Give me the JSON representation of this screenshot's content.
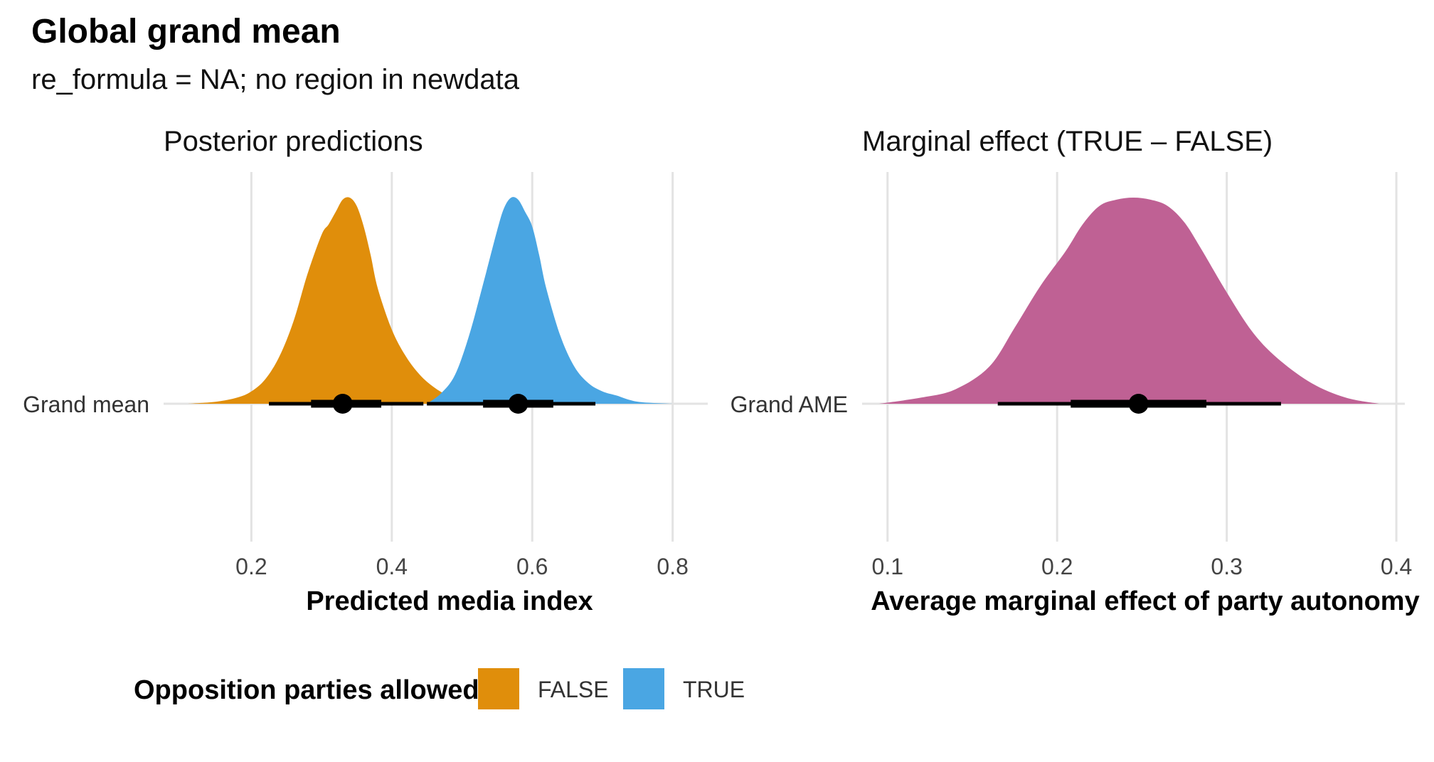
{
  "title": "Global grand mean",
  "subtitle": "re_formula = NA; no region in newdata",
  "colors": {
    "false": "#E08E0B",
    "true": "#4AA6E3",
    "ame": "#BF6194",
    "interval": "#000000",
    "grid": "#E3E3E3"
  },
  "chart_data": [
    {
      "type": "area",
      "subtype": "halfeye-density",
      "title": "Posterior predictions",
      "xlabel": "Predicted media index",
      "ylabel": "",
      "row_label": "Grand mean",
      "xlim": [
        0.075,
        0.85
      ],
      "xticks": [
        0.2,
        0.4,
        0.6,
        0.8
      ],
      "xtick_labels": [
        "0.2",
        "0.4",
        "0.6",
        "0.8"
      ],
      "grid": true,
      "series": [
        {
          "name": "FALSE",
          "color": "#E08E0B",
          "density": {
            "x": [
              0.11,
              0.15,
              0.18,
              0.2,
              0.22,
              0.24,
              0.26,
              0.28,
              0.3,
              0.31,
              0.32,
              0.33,
              0.34,
              0.35,
              0.36,
              0.37,
              0.38,
              0.4,
              0.42,
              0.44,
              0.46,
              0.48,
              0.5,
              0.52,
              0.55
            ],
            "y": [
              0.0,
              0.01,
              0.03,
              0.06,
              0.12,
              0.23,
              0.4,
              0.63,
              0.82,
              0.87,
              0.93,
              0.99,
              1.0,
              0.96,
              0.86,
              0.72,
              0.56,
              0.36,
              0.23,
              0.14,
              0.08,
              0.04,
              0.02,
              0.01,
              0.0
            ]
          },
          "point": 0.33,
          "interval_66": [
            0.285,
            0.385
          ],
          "interval_95": [
            0.225,
            0.445
          ]
        },
        {
          "name": "TRUE",
          "color": "#4AA6E3",
          "density": {
            "x": [
              0.45,
              0.47,
              0.49,
              0.51,
              0.53,
              0.55,
              0.56,
              0.57,
              0.58,
              0.59,
              0.6,
              0.61,
              0.62,
              0.64,
              0.66,
              0.68,
              0.7,
              0.72,
              0.75,
              0.8
            ],
            "y": [
              0.0,
              0.05,
              0.14,
              0.33,
              0.58,
              0.84,
              0.95,
              1.0,
              0.99,
              0.93,
              0.86,
              0.72,
              0.56,
              0.33,
              0.18,
              0.1,
              0.06,
              0.04,
              0.01,
              0.0
            ]
          },
          "point": 0.58,
          "interval_66": [
            0.53,
            0.63
          ],
          "interval_95": [
            0.45,
            0.69
          ]
        }
      ]
    },
    {
      "type": "area",
      "subtype": "halfeye-density",
      "title": "Marginal effect (TRUE – FALSE)",
      "xlabel": "Average marginal effect of party autonomy",
      "ylabel": "",
      "row_label": "Grand AME",
      "xlim": [
        0.085,
        0.405
      ],
      "xticks": [
        0.1,
        0.2,
        0.3,
        0.4
      ],
      "xtick_labels": [
        "0.1",
        "0.2",
        "0.3",
        "0.4"
      ],
      "grid": true,
      "series": [
        {
          "name": "AME",
          "color": "#BF6194",
          "density": {
            "x": [
              0.095,
              0.12,
              0.14,
              0.16,
              0.175,
              0.19,
              0.205,
              0.215,
              0.225,
              0.235,
              0.245,
              0.255,
              0.265,
              0.275,
              0.285,
              0.3,
              0.315,
              0.33,
              0.35,
              0.37,
              0.39
            ],
            "y": [
              0.0,
              0.03,
              0.07,
              0.18,
              0.37,
              0.57,
              0.74,
              0.87,
              0.96,
              0.99,
              1.0,
              0.99,
              0.96,
              0.88,
              0.75,
              0.54,
              0.35,
              0.22,
              0.1,
              0.03,
              0.0
            ]
          },
          "point": 0.248,
          "interval_66": [
            0.208,
            0.288
          ],
          "interval_95": [
            0.165,
            0.332
          ]
        }
      ]
    }
  ],
  "legend": {
    "title": "Opposition parties allowed",
    "placement": "bottom",
    "items": [
      {
        "label": "FALSE",
        "color": "#E08E0B"
      },
      {
        "label": "TRUE",
        "color": "#4AA6E3"
      }
    ]
  }
}
